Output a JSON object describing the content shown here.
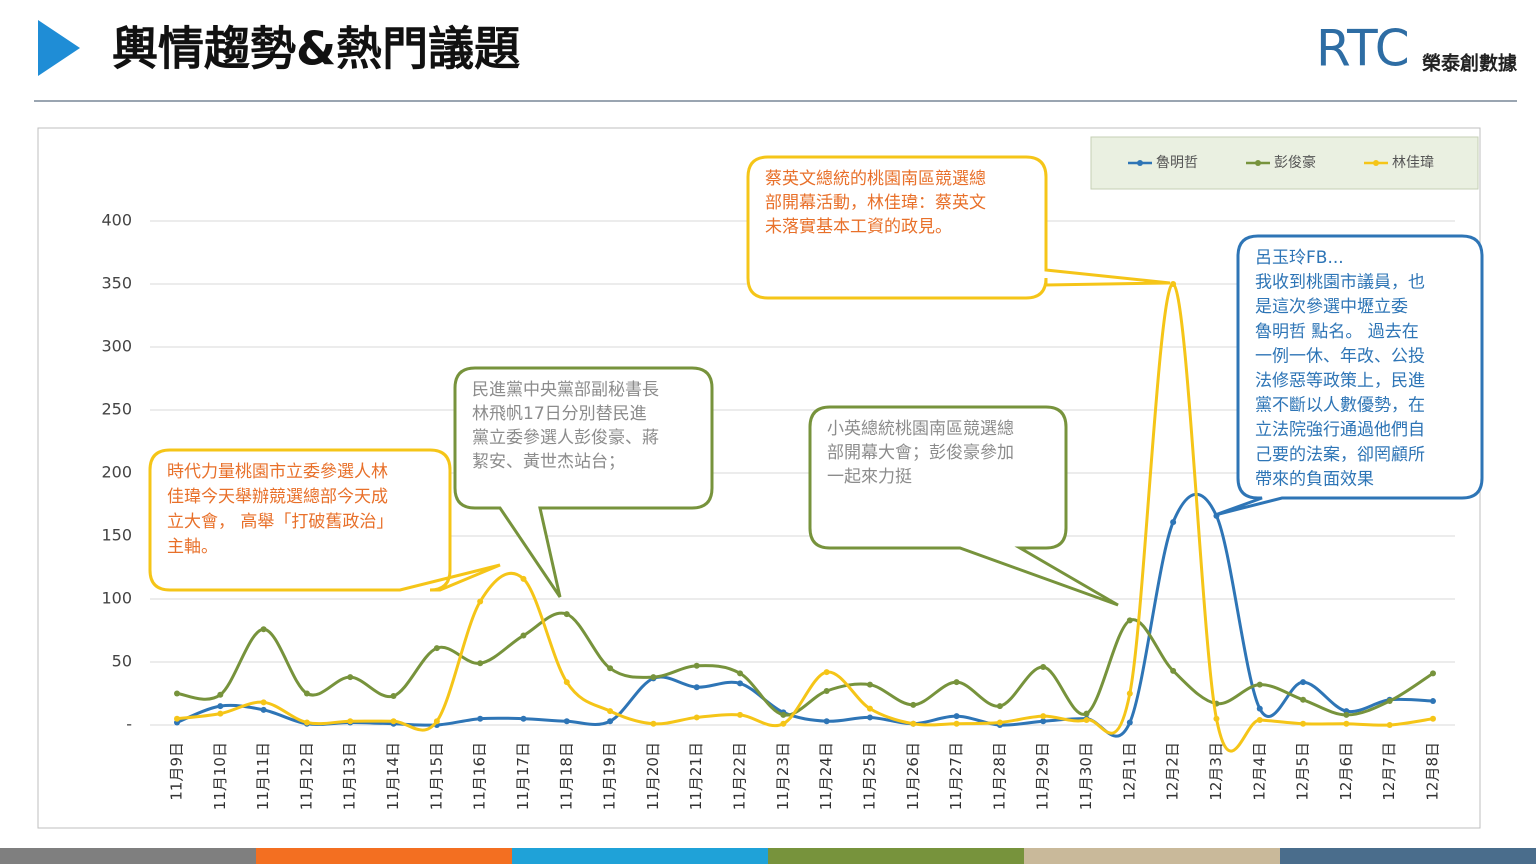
{
  "header": {
    "title": "輿情趨勢&熱門議題",
    "logo": "RTC",
    "company": "榮泰創數據"
  },
  "chart_data": {
    "type": "line",
    "categories": [
      "11月9日",
      "11月10日",
      "11月11日",
      "11月12日",
      "11月13日",
      "11月14日",
      "11月15日",
      "11月16日",
      "11月17日",
      "11月18日",
      "11月19日",
      "11月20日",
      "11月21日",
      "11月22日",
      "11月23日",
      "11月24日",
      "11月25日",
      "11月26日",
      "11月27日",
      "11月28日",
      "11月29日",
      "11月30日",
      "12月1日",
      "12月2日",
      "12月3日",
      "12月4日",
      "12月5日",
      "12月6日",
      "12月7日",
      "12月8日"
    ],
    "series": [
      {
        "name": "魯明哲",
        "color": "#2e75b6",
        "values": [
          2,
          15,
          12,
          1,
          2,
          1,
          0,
          5,
          5,
          3,
          3,
          37,
          30,
          33,
          10,
          3,
          6,
          1,
          7,
          0,
          3,
          5,
          2,
          161,
          166,
          13,
          34,
          11,
          20,
          19
        ]
      },
      {
        "name": "彭俊豪",
        "color": "#77933c",
        "values": [
          25,
          24,
          76,
          25,
          38,
          23,
          61,
          49,
          71,
          88,
          45,
          38,
          47,
          41,
          8,
          27,
          32,
          16,
          34,
          15,
          46,
          9,
          83,
          43,
          17,
          32,
          20,
          8,
          19,
          41
        ]
      },
      {
        "name": "林佳瑋",
        "color": "#f5c518",
        "values": [
          5,
          9,
          18,
          2,
          3,
          3,
          3,
          98,
          116,
          34,
          11,
          1,
          6,
          8,
          1,
          42,
          13,
          1,
          1,
          2,
          7,
          4,
          25,
          350,
          5,
          4,
          1,
          1,
          0,
          5
        ]
      }
    ],
    "ylim": [
      0,
      400
    ],
    "yticks": [
      {
        "value": 0,
        "label": "-"
      },
      50,
      100,
      150,
      200,
      250,
      300,
      350,
      400
    ],
    "grid": true,
    "legend": "top-right",
    "annotations": [
      {
        "lines": [
          "時代力量桃園市立委參選人林",
          "佳瑋今天舉辦競選總部今天成",
          "立大會， 高舉「打破舊政治」",
          "主軸。"
        ],
        "color": "#f5c518",
        "text_color": "#e8702a"
      },
      {
        "lines": [
          "民進黨中央黨部副秘書長",
          "林飛帆17日分別替民進",
          "黨立委參選人彭俊豪、蔣",
          "絜安、黃世杰站台；"
        ],
        "color": "#77933c",
        "text_color": "#8c8c8c"
      },
      {
        "lines": [
          "蔡英文總統的桃園南區競選總",
          "部開幕活動，林佳瑋：蔡英文",
          "未落實基本工資的政見。"
        ],
        "color": "#f5c518",
        "text_color": "#e8702a"
      },
      {
        "lines": [
          "小英總統桃園南區競選總",
          "部開幕大會；彭俊豪參加",
          "一起來力挺"
        ],
        "color": "#77933c",
        "text_color": "#8c8c8c"
      },
      {
        "lines": [
          "呂玉玲FB...",
          "我收到桃園市議員，也",
          "是這次參選中壢立委",
          "魯明哲 點名。 過去在",
          "一例一休、年改、公投",
          "法修惡等政策上，民進",
          "黨不斷以人數優勢，在",
          "立法院強行通過他們自",
          "己要的法案，卻罔顧所",
          "帶來的負面效果"
        ],
        "color": "#2e75b6",
        "text_color": "#2e75b6"
      }
    ]
  }
}
